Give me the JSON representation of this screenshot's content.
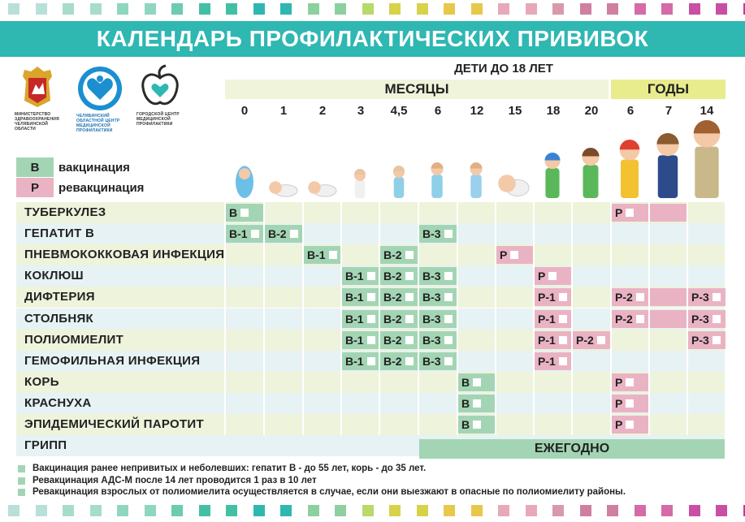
{
  "title": "КАЛЕНДАРЬ ПРОФИЛАКТИЧЕСКИХ ПРИВИВОК",
  "logos": {
    "ministry": "МИНИСТЕРСТВО ЗДРАВООХРАНЕНИЯ ЧЕЛЯБИНСКОЙ ОБЛАСТИ",
    "center": "ЧЕЛЯБИНСКИЙ ОБЛАСТНОЙ ЦЕНТР МЕДИЦИНСКОЙ ПРОФИЛАКТИКИ",
    "city": "ГОРОДСКОЙ ЦЕНТР МЕДИЦИНСКОЙ ПРОФИЛАКТИКИ"
  },
  "age_title": "ДЕТИ ДО 18 ЛЕТ",
  "bands": {
    "months": "МЕСЯЦЫ",
    "years": "ГОДЫ"
  },
  "columns": [
    "0",
    "1",
    "2",
    "3",
    "4,5",
    "6",
    "12",
    "15",
    "18",
    "20",
    "6",
    "7",
    "14"
  ],
  "legend": {
    "v_code": "В",
    "v_label": "вакцинация",
    "r_code": "Р",
    "r_label": "ревакцинация"
  },
  "colors": {
    "teal": "#2fb7b2",
    "vaccination": "#a3d5b4",
    "revaccination": "#eab3c4"
  },
  "rows": [
    {
      "name": "ТУБЕРКУЛЕЗ",
      "cells": [
        {
          "col": 0,
          "text": "В",
          "type": "v"
        },
        {
          "col": 10,
          "span": 2,
          "text": "Р",
          "type": "r"
        }
      ]
    },
    {
      "name": "ГЕПАТИТ В",
      "cells": [
        {
          "col": 0,
          "text": "В-1",
          "type": "v"
        },
        {
          "col": 1,
          "text": "В-2",
          "type": "v"
        },
        {
          "col": 5,
          "text": "В-3",
          "type": "v"
        }
      ]
    },
    {
      "name": "ПНЕВМОКОККОВАЯ ИНФЕКЦИЯ",
      "cells": [
        {
          "col": 2,
          "text": "В-1",
          "type": "v"
        },
        {
          "col": 4,
          "text": "В-2",
          "type": "v"
        },
        {
          "col": 7,
          "text": "Р",
          "type": "r"
        }
      ]
    },
    {
      "name": "КОКЛЮШ",
      "cells": [
        {
          "col": 3,
          "text": "В-1",
          "type": "v"
        },
        {
          "col": 4,
          "text": "В-2",
          "type": "v"
        },
        {
          "col": 5,
          "text": "В-3",
          "type": "v"
        },
        {
          "col": 8,
          "text": "Р",
          "type": "r"
        }
      ]
    },
    {
      "name": "ДИФТЕРИЯ",
      "cells": [
        {
          "col": 3,
          "text": "В-1",
          "type": "v"
        },
        {
          "col": 4,
          "text": "В-2",
          "type": "v"
        },
        {
          "col": 5,
          "text": "В-3",
          "type": "v"
        },
        {
          "col": 8,
          "text": "Р-1",
          "type": "r"
        },
        {
          "col": 10,
          "span": 2,
          "text": "Р-2",
          "type": "r"
        },
        {
          "col": 12,
          "text": "Р-3",
          "type": "r"
        }
      ]
    },
    {
      "name": "СТОЛБНЯК",
      "cells": [
        {
          "col": 3,
          "text": "В-1",
          "type": "v"
        },
        {
          "col": 4,
          "text": "В-2",
          "type": "v"
        },
        {
          "col": 5,
          "text": "В-3",
          "type": "v"
        },
        {
          "col": 8,
          "text": "Р-1",
          "type": "r"
        },
        {
          "col": 10,
          "span": 2,
          "text": "Р-2",
          "type": "r"
        },
        {
          "col": 12,
          "text": "Р-3",
          "type": "r"
        }
      ]
    },
    {
      "name": "ПОЛИОМИЕЛИТ",
      "cells": [
        {
          "col": 3,
          "text": "В-1",
          "type": "v"
        },
        {
          "col": 4,
          "text": "В-2",
          "type": "v"
        },
        {
          "col": 5,
          "text": "В-3",
          "type": "v"
        },
        {
          "col": 8,
          "text": "Р-1",
          "type": "r"
        },
        {
          "col": 9,
          "text": "Р-2",
          "type": "r"
        },
        {
          "col": 12,
          "text": "Р-3",
          "type": "r"
        }
      ]
    },
    {
      "name": "ГЕМОФИЛЬНАЯ ИНФЕКЦИЯ",
      "cells": [
        {
          "col": 3,
          "text": "В-1",
          "type": "v"
        },
        {
          "col": 4,
          "text": "В-2",
          "type": "v"
        },
        {
          "col": 5,
          "text": "В-3",
          "type": "v"
        },
        {
          "col": 8,
          "text": "Р-1",
          "type": "r"
        }
      ]
    },
    {
      "name": "КОРЬ",
      "cells": [
        {
          "col": 6,
          "text": "В",
          "type": "v"
        },
        {
          "col": 10,
          "text": "Р",
          "type": "r"
        }
      ]
    },
    {
      "name": "КРАСНУХА",
      "cells": [
        {
          "col": 6,
          "text": "В",
          "type": "v"
        },
        {
          "col": 10,
          "text": "Р",
          "type": "r"
        }
      ]
    },
    {
      "name": "ЭПИДЕМИЧЕСКИЙ ПАРОТИТ",
      "cells": [
        {
          "col": 6,
          "text": "В",
          "type": "v"
        },
        {
          "col": 10,
          "text": "Р",
          "type": "r"
        }
      ]
    },
    {
      "name": "ГРИПП",
      "cells": []
    }
  ],
  "flu_label": "ЕЖЕГОДНО",
  "notes": [
    "Вакцинация ранее непривитых и неболевших: гепатит В - до 55 лет, корь - до 35 лет.",
    "Ревакцинация АДС-М после 14 лет проводится 1 раз в 10 лет",
    "Ревакцинация взрослых от полиомиелита осуществляется в случае, если они выезжают в опасные по полиомиелиту районы."
  ]
}
